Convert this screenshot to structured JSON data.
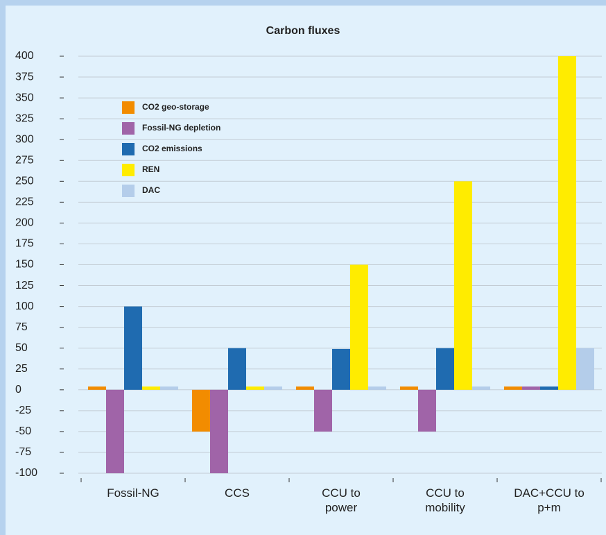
{
  "chart_data": {
    "type": "bar",
    "title": "Carbon fluxes",
    "categories": [
      "Fossil-NG",
      "CCS",
      "CCU to\npower",
      "CCU to\nmobility",
      "DAC+CCU to\np+m"
    ],
    "series": [
      {
        "name": "CO2 geo-storage",
        "color": "#f28c00",
        "values": [
          4,
          -50,
          4,
          4,
          4
        ]
      },
      {
        "name": "Fossil-NG depletion",
        "color": "#a064a8",
        "values": [
          -100,
          -100,
          -50,
          -50,
          4
        ]
      },
      {
        "name": "CO2 emissions",
        "color": "#1f6bb0",
        "values": [
          100,
          50,
          49,
          50,
          4
        ]
      },
      {
        "name": "REN",
        "color": "#ffec00",
        "values": [
          4,
          4,
          150,
          250,
          400
        ]
      },
      {
        "name": "DAC",
        "color": "#b4cdea",
        "values": [
          4,
          4,
          4,
          4,
          50
        ]
      }
    ],
    "ylim": [
      -100,
      400
    ],
    "yticks": [
      -100,
      -75,
      -50,
      -25,
      0,
      25,
      50,
      75,
      100,
      125,
      150,
      175,
      200,
      225,
      250,
      275,
      300,
      325,
      350,
      375,
      400
    ],
    "grid": true,
    "legend": "upper-left"
  }
}
